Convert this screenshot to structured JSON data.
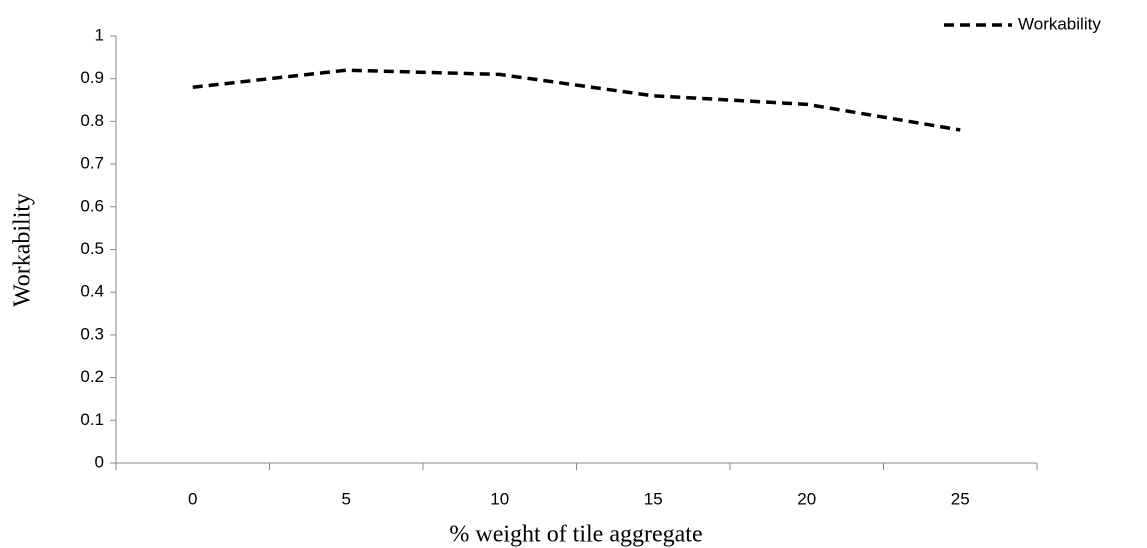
{
  "chart_data": {
    "type": "line",
    "x_label": "% weight of tile aggregate",
    "y_label": "Workability",
    "categories": [
      "0",
      "5",
      "10",
      "15",
      "20",
      "25"
    ],
    "series": [
      {
        "name": "Workability",
        "color": "#000000",
        "line_style": "dashed",
        "values": [
          0.88,
          0.92,
          0.91,
          0.86,
          0.84,
          0.78
        ]
      }
    ],
    "ylim": [
      0,
      1
    ],
    "yticks": [
      0,
      0.1,
      0.2,
      0.3,
      0.4,
      0.5,
      0.6,
      0.7,
      0.8,
      0.9,
      1
    ],
    "grid": false,
    "legend": "top-right"
  }
}
